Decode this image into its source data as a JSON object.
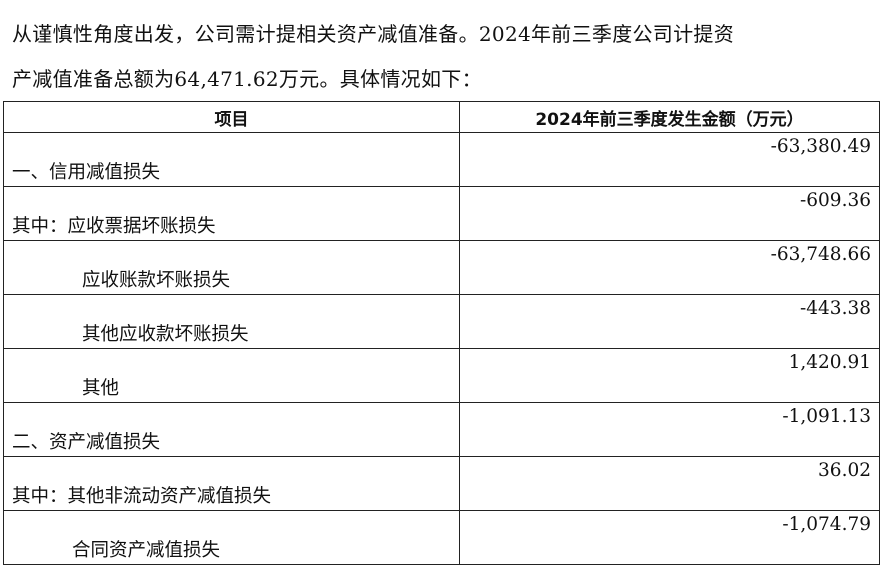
{
  "paragraph": {
    "line1": "从谨慎性角度出发，公司需计提相关资产减值准备。2024年前三季度公司计提资",
    "line2": "产减值准备总额为64,471.62万元。具体情况如下："
  },
  "table": {
    "headers": [
      "项目",
      "2024年前三季度发生金额（万元）"
    ],
    "rows": [
      {
        "item": "一、信用减值损失",
        "amount": "-63,380.49"
      },
      {
        "item": "其中：应收票据坏账损失",
        "amount": "-609.36"
      },
      {
        "item": "应收账款坏账损失",
        "amount": "-63,748.66"
      },
      {
        "item": "其他应收款坏账损失",
        "amount": "-443.38"
      },
      {
        "item": "其他",
        "amount": "1,420.91"
      },
      {
        "item": "二、资产减值损失",
        "amount": "-1,091.13"
      },
      {
        "item": "其中：其他非流动资产减值损失",
        "amount": "36.02"
      },
      {
        "item": "合同资产减值损失",
        "amount": "-1,074.79"
      }
    ]
  }
}
